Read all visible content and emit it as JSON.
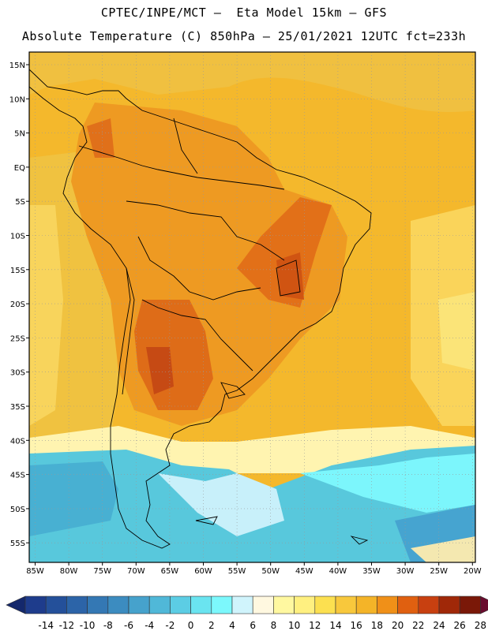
{
  "header": {
    "line1": "CPTEC/INPE/MCT –  Eta Model 15km – GFS",
    "line2": "Absolute Temperature (C) 850hPa – 25/01/2021 12UTC fct=233h"
  },
  "map": {
    "lon_labels": [
      "85W",
      "80W",
      "75W",
      "70W",
      "65W",
      "60W",
      "55W",
      "50W",
      "45W",
      "40W",
      "35W",
      "30W",
      "25W",
      "20W"
    ],
    "lat_labels": [
      "15N",
      "10N",
      "5N",
      "EQ",
      "5S",
      "10S",
      "15S",
      "20S",
      "25S",
      "30S",
      "35S",
      "40S",
      "45S",
      "50S",
      "55S"
    ]
  },
  "colorbar": {
    "labels": [
      "-14",
      "-12",
      "-10",
      "-8",
      "-6",
      "-4",
      "-2",
      "0",
      "2",
      "4",
      "6",
      "8",
      "10",
      "12",
      "14",
      "16",
      "18",
      "20",
      "22",
      "24",
      "26",
      "28"
    ],
    "colors": [
      "#1e3c8c",
      "#24509a",
      "#2c64a8",
      "#3478b4",
      "#3c8cc0",
      "#46a2cc",
      "#50b8d8",
      "#5ccde4",
      "#6ae4f0",
      "#7cf8fc",
      "#d0f4fc",
      "#fff8e0",
      "#fff8a0",
      "#fff080",
      "#fce050",
      "#f8c83c",
      "#f4b428",
      "#f09018",
      "#e06010",
      "#c84010",
      "#a02808",
      "#7a1808"
    ],
    "low_color": "#14286c",
    "high_color": "#6a0c2e"
  }
}
